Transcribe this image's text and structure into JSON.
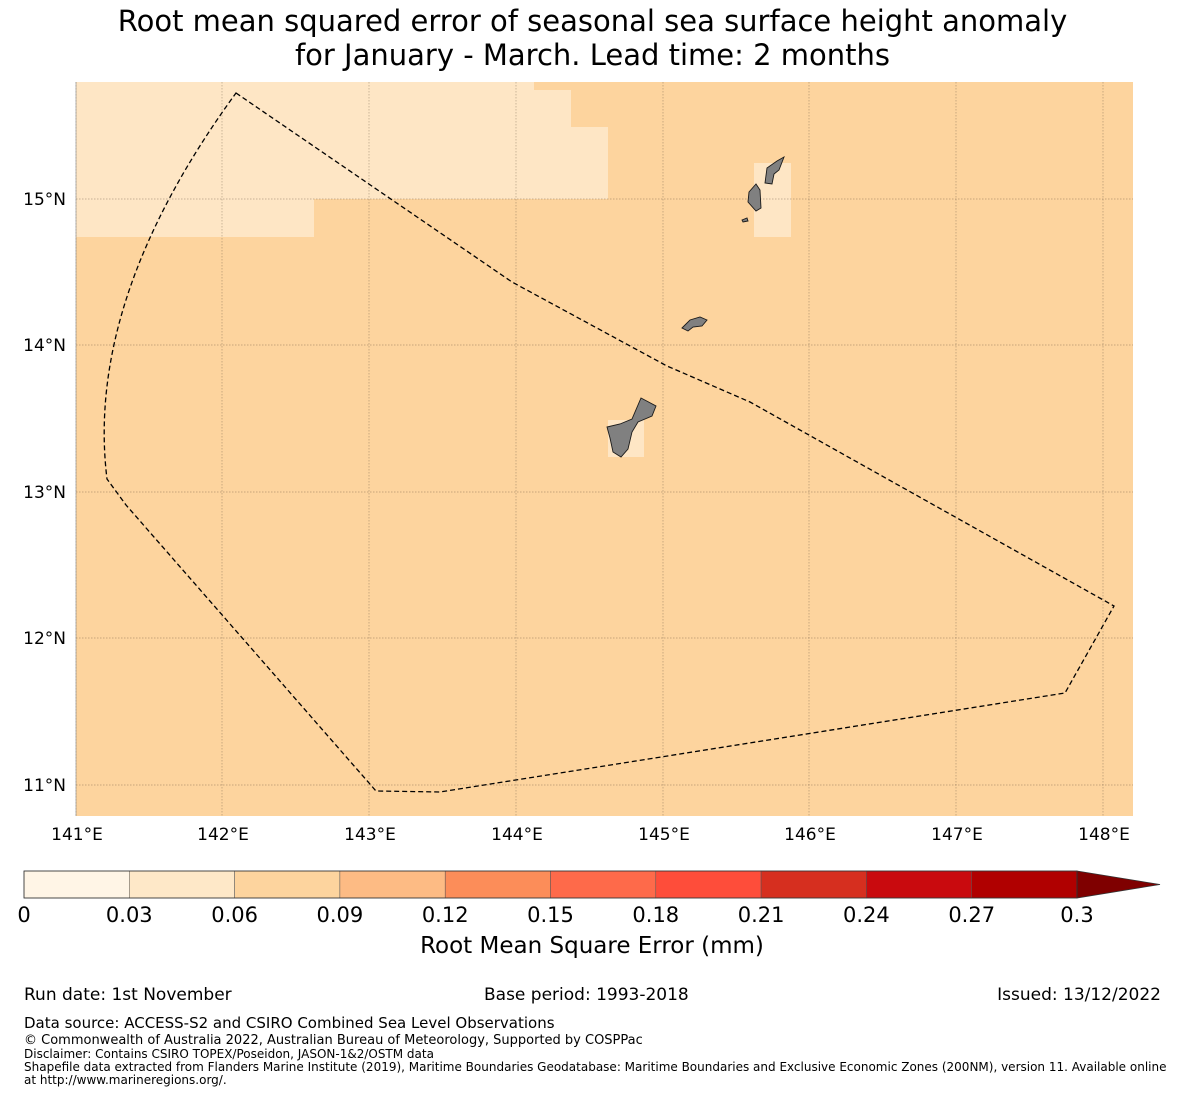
{
  "title": {
    "line1": "Root mean squared error of seasonal sea surface height anomaly",
    "line2": "for January - March. Lead time: 2 months"
  },
  "map": {
    "lon_range": [
      140.96,
      148.2
    ],
    "lat_range": [
      10.8,
      15.8
    ],
    "lon_ticks": [
      "141°E",
      "142°E",
      "143°E",
      "144°E",
      "145°E",
      "146°E",
      "147°E",
      "148°E"
    ],
    "lat_ticks": [
      "11°N",
      "12°N",
      "13°N",
      "14°N",
      "15°N"
    ],
    "gridlines": true,
    "background_color": "#fdd49e",
    "low_error_color": "#fee6c5",
    "land_color": "#808080",
    "boundary_style": "dashed black line (Exclusive Economic Zone)"
  },
  "colorbar": {
    "levels": [
      "0",
      "0.03",
      "0.06",
      "0.09",
      "0.12",
      "0.15",
      "0.18",
      "0.21",
      "0.24",
      "0.27",
      "0.3"
    ],
    "colors": [
      "#fff5e6",
      "#fee8c8",
      "#fdd49e",
      "#fdbb84",
      "#fc8d59",
      "#fe6a4a",
      "#fe4d3a",
      "#d62f1f",
      "#c90a0e",
      "#b00000"
    ],
    "extend_color": "#7f0000",
    "label": "Root Mean Square Error (mm)"
  },
  "meta": {
    "run_date": "Run date: 1st November",
    "base_period": "Base period: 1993-2018",
    "issued": "Issued: 13/12/2022"
  },
  "footer": {
    "data_source": "Data source: ACCESS-S2 and CSIRO Combined Sea Level Observations",
    "copyright": "© Commonwealth of Australia 2022, Australian Bureau of Meteorology, Supported by COSPPac",
    "disclaimer": "Disclaimer: Contains CSIRO TOPEX/Poseidon, JASON-1&2/OSTM data",
    "shapefile": "Shapefile data extracted from Flanders Marine Institute (2019), Maritime Boundaries Geodatabase: Maritime Boundaries and Exclusive Economic Zones (200NM), version 11. Available online at http://www.marineregions.org/."
  }
}
